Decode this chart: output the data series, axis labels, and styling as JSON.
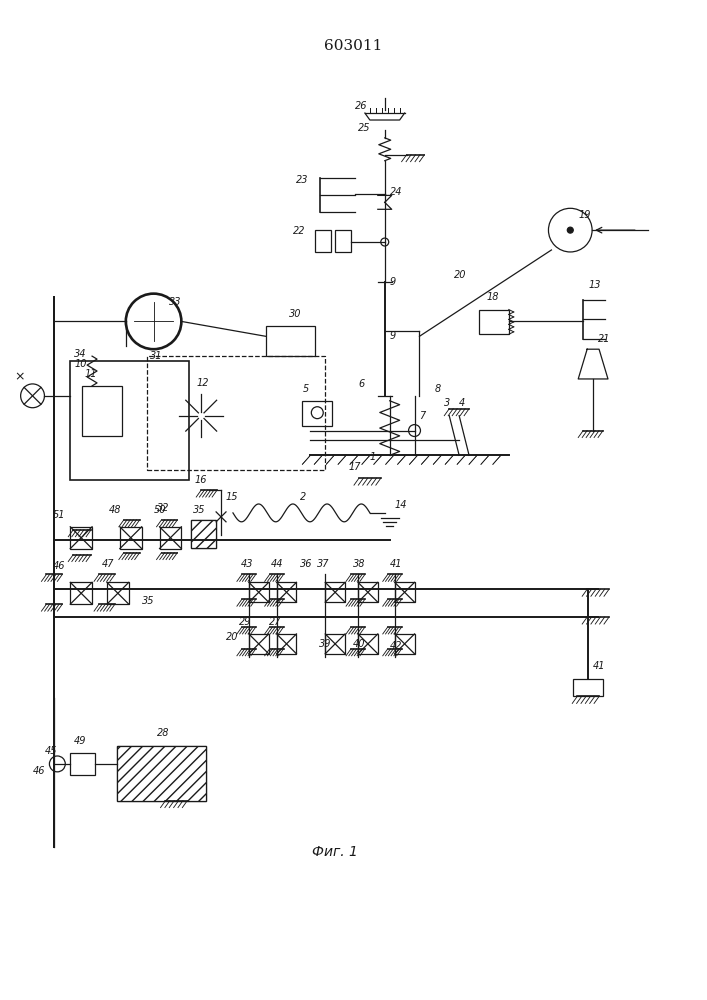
{
  "title": "603011",
  "caption": "Фиг. 1",
  "bg_color": "#ffffff",
  "line_color": "#1a1a1a",
  "figsize": [
    7.07,
    10.0
  ],
  "dpi": 100
}
